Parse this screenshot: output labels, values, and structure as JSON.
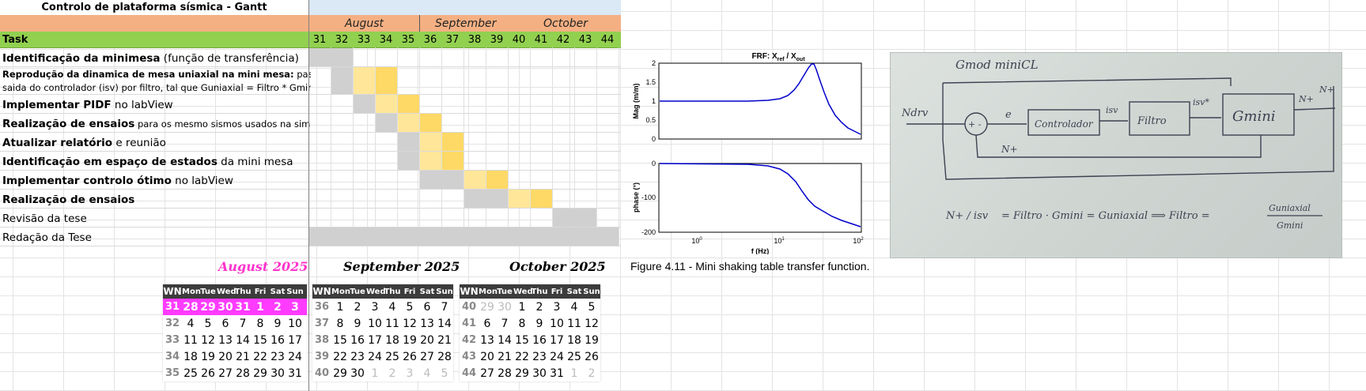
{
  "gantt": {
    "title": "Controlo de plataforma sísmica - Gantt",
    "months": [
      "August",
      "September",
      "October"
    ],
    "task_header": "Task",
    "weeks": [
      "31",
      "32",
      "33",
      "34",
      "35",
      "36",
      "37",
      "38",
      "39",
      "40",
      "41",
      "42",
      "43",
      "44"
    ],
    "tasks": [
      {
        "bold": "Identificação da minimesa",
        "rest": " (função de transferência)"
      },
      {
        "bold": "Reprodução da dinamica de mesa uniaxial na mini mesa:",
        "rest": " passar",
        "line2": "saida do controlador (isv) por filtro, tal que Guniaxial = Filtro * Gmini"
      },
      {
        "bold": "Implementar PIDF",
        "rest": " no labView"
      },
      {
        "bold": "Realização de ensaios",
        "rest": " para os mesmo sismos usados na simulação"
      },
      {
        "bold": "Atualizar relatório",
        "rest": " e reunião"
      },
      {
        "bold": "Identificação em espaço de estados",
        "rest": " da mini mesa"
      },
      {
        "bold": "Implementar controlo ótimo",
        "rest": " no labView"
      },
      {
        "bold": "Realização de ensaios",
        "rest": ""
      },
      {
        "bold": "",
        "rest": "Revisão da tese"
      },
      {
        "bold": "",
        "rest": "Redação da Tese"
      }
    ],
    "colors": {
      "planned": "#d0d0d0",
      "active_light": "#ffe699",
      "active": "#ffd966",
      "header_month": "#f4b083",
      "header_week": "#92d050"
    }
  },
  "calendars": [
    {
      "title": "August 2025",
      "title_color": "#ff33cc",
      "headers": [
        "WN",
        "Mon",
        "Tue",
        "Wed",
        "Thu",
        "Fri",
        "Sat",
        "Sun"
      ],
      "rows": [
        [
          "31",
          "28",
          "29",
          "30",
          "31",
          "1",
          "2",
          "3"
        ],
        [
          "32",
          "4",
          "5",
          "6",
          "7",
          "8",
          "9",
          "10"
        ],
        [
          "33",
          "11",
          "12",
          "13",
          "14",
          "15",
          "16",
          "17"
        ],
        [
          "34",
          "18",
          "19",
          "20",
          "21",
          "22",
          "23",
          "24"
        ],
        [
          "35",
          "25",
          "26",
          "27",
          "28",
          "29",
          "30",
          "31"
        ]
      ]
    },
    {
      "title": "September 2025",
      "title_color": "#000000",
      "headers": [
        "WN",
        "Mon",
        "Tue",
        "Wed",
        "Thu",
        "Fri",
        "Sat",
        "Sun"
      ],
      "rows": [
        [
          "36",
          "1",
          "2",
          "3",
          "4",
          "5",
          "6",
          "7"
        ],
        [
          "37",
          "8",
          "9",
          "10",
          "11",
          "12",
          "13",
          "14"
        ],
        [
          "38",
          "15",
          "16",
          "17",
          "18",
          "19",
          "20",
          "21"
        ],
        [
          "39",
          "22",
          "23",
          "24",
          "25",
          "26",
          "27",
          "28"
        ],
        [
          "40",
          "29",
          "30",
          "1",
          "2",
          "3",
          "4",
          "5"
        ]
      ]
    },
    {
      "title": "October 2025",
      "title_color": "#000000",
      "headers": [
        "WN",
        "Mon",
        "Tue",
        "Wed",
        "Thu",
        "Fri",
        "Sat",
        "Sun"
      ],
      "rows": [
        [
          "40",
          "29",
          "30",
          "1",
          "2",
          "3",
          "4",
          "5"
        ],
        [
          "41",
          "6",
          "7",
          "8",
          "9",
          "10",
          "11",
          "12"
        ],
        [
          "42",
          "13",
          "14",
          "15",
          "16",
          "17",
          "18",
          "19"
        ],
        [
          "43",
          "20",
          "21",
          "22",
          "23",
          "24",
          "25",
          "26"
        ],
        [
          "44",
          "27",
          "28",
          "29",
          "30",
          "31",
          "1",
          "2"
        ]
      ]
    }
  ],
  "frf_plot": {
    "title": "FRF: X",
    "title_sub_ref": "ref",
    "title_mid": " / X",
    "title_sub_out": "out",
    "mag_label": "Mag (m/m)",
    "phase_label": "phase (°)",
    "x_label": "f (Hz)",
    "mag_ticks": [
      "2",
      "1.5",
      "1",
      "0.5",
      "0"
    ],
    "phase_ticks": [
      "0",
      "-100",
      "-200"
    ],
    "x_ticks": [
      "10",
      "10",
      "10"
    ],
    "x_tick_exps": [
      "0",
      "1",
      "2"
    ],
    "line_color": "#0000cc"
  },
  "caption": "Figure 4.11 - Mini shaking table transfer function.",
  "sketch": {
    "title": "Gmod miniCL",
    "input": "Ndrv",
    "error": "e",
    "block1": "Controlador",
    "signal1": "isv",
    "block2": "Filtro",
    "signal2": "isv*",
    "block3": "Gmini",
    "output1": "N+",
    "output2": "N+",
    "feedback": "N+",
    "summing": "+ -",
    "eq_lhs": "N+ / isv",
    "eq_middle": "= Filtro · Gmini = Guniaxial ⟹ Filtro =",
    "eq_frac_num": "Guniaxial",
    "eq_frac_den": "Gmini"
  }
}
